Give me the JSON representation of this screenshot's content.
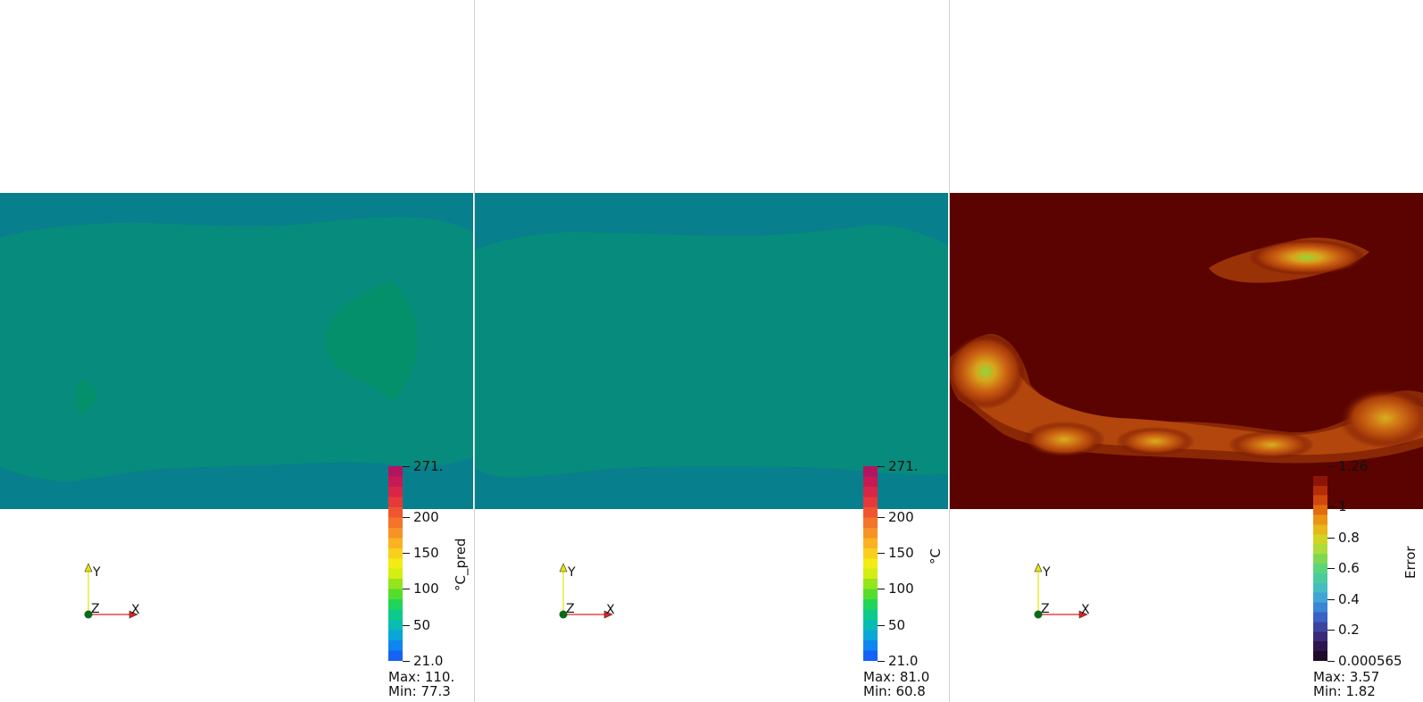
{
  "panes": [
    {
      "scalar_title": "°C_pred",
      "ticks": [
        "271.",
        "200",
        "150",
        "100",
        "50",
        "21.0"
      ],
      "tick_fractions": [
        1.0,
        0.7407,
        0.5556,
        0.3704,
        0.1852,
        0.0
      ],
      "max_label": "Max: 110.",
      "min_label": "Min: 77.3",
      "colormap": "rainbow",
      "axes": {
        "y": "Y",
        "x": "X",
        "z": "Z"
      }
    },
    {
      "scalar_title": "°C",
      "ticks": [
        "271.",
        "200",
        "150",
        "100",
        "50",
        "21.0"
      ],
      "tick_fractions": [
        1.0,
        0.7407,
        0.5556,
        0.3704,
        0.1852,
        0.0
      ],
      "max_label": "Max: 81.0",
      "min_label": "Min: 60.8",
      "colormap": "rainbow",
      "axes": {
        "y": "Y",
        "x": "X",
        "z": "Z"
      }
    },
    {
      "scalar_title": "Error",
      "ticks": [
        "1.26",
        "1",
        "0.8",
        "0.6",
        "0.4",
        "0.2",
        "0.000565"
      ],
      "tick_fractions": [
        1.0,
        0.7937,
        0.6349,
        0.4762,
        0.3175,
        0.1587,
        0.0
      ],
      "max_label": "Max: 3.57",
      "min_label": "Min: 1.82",
      "colormap": "error",
      "axes": {
        "y": "Y",
        "x": "X",
        "z": "Z"
      }
    }
  ],
  "colors": {
    "field_dark_teal": "#087f8c",
    "field_teal": "#078b7d",
    "field_green": "#05906c",
    "error_background": "#5a0300",
    "error_hot": "#7fcf3c"
  }
}
